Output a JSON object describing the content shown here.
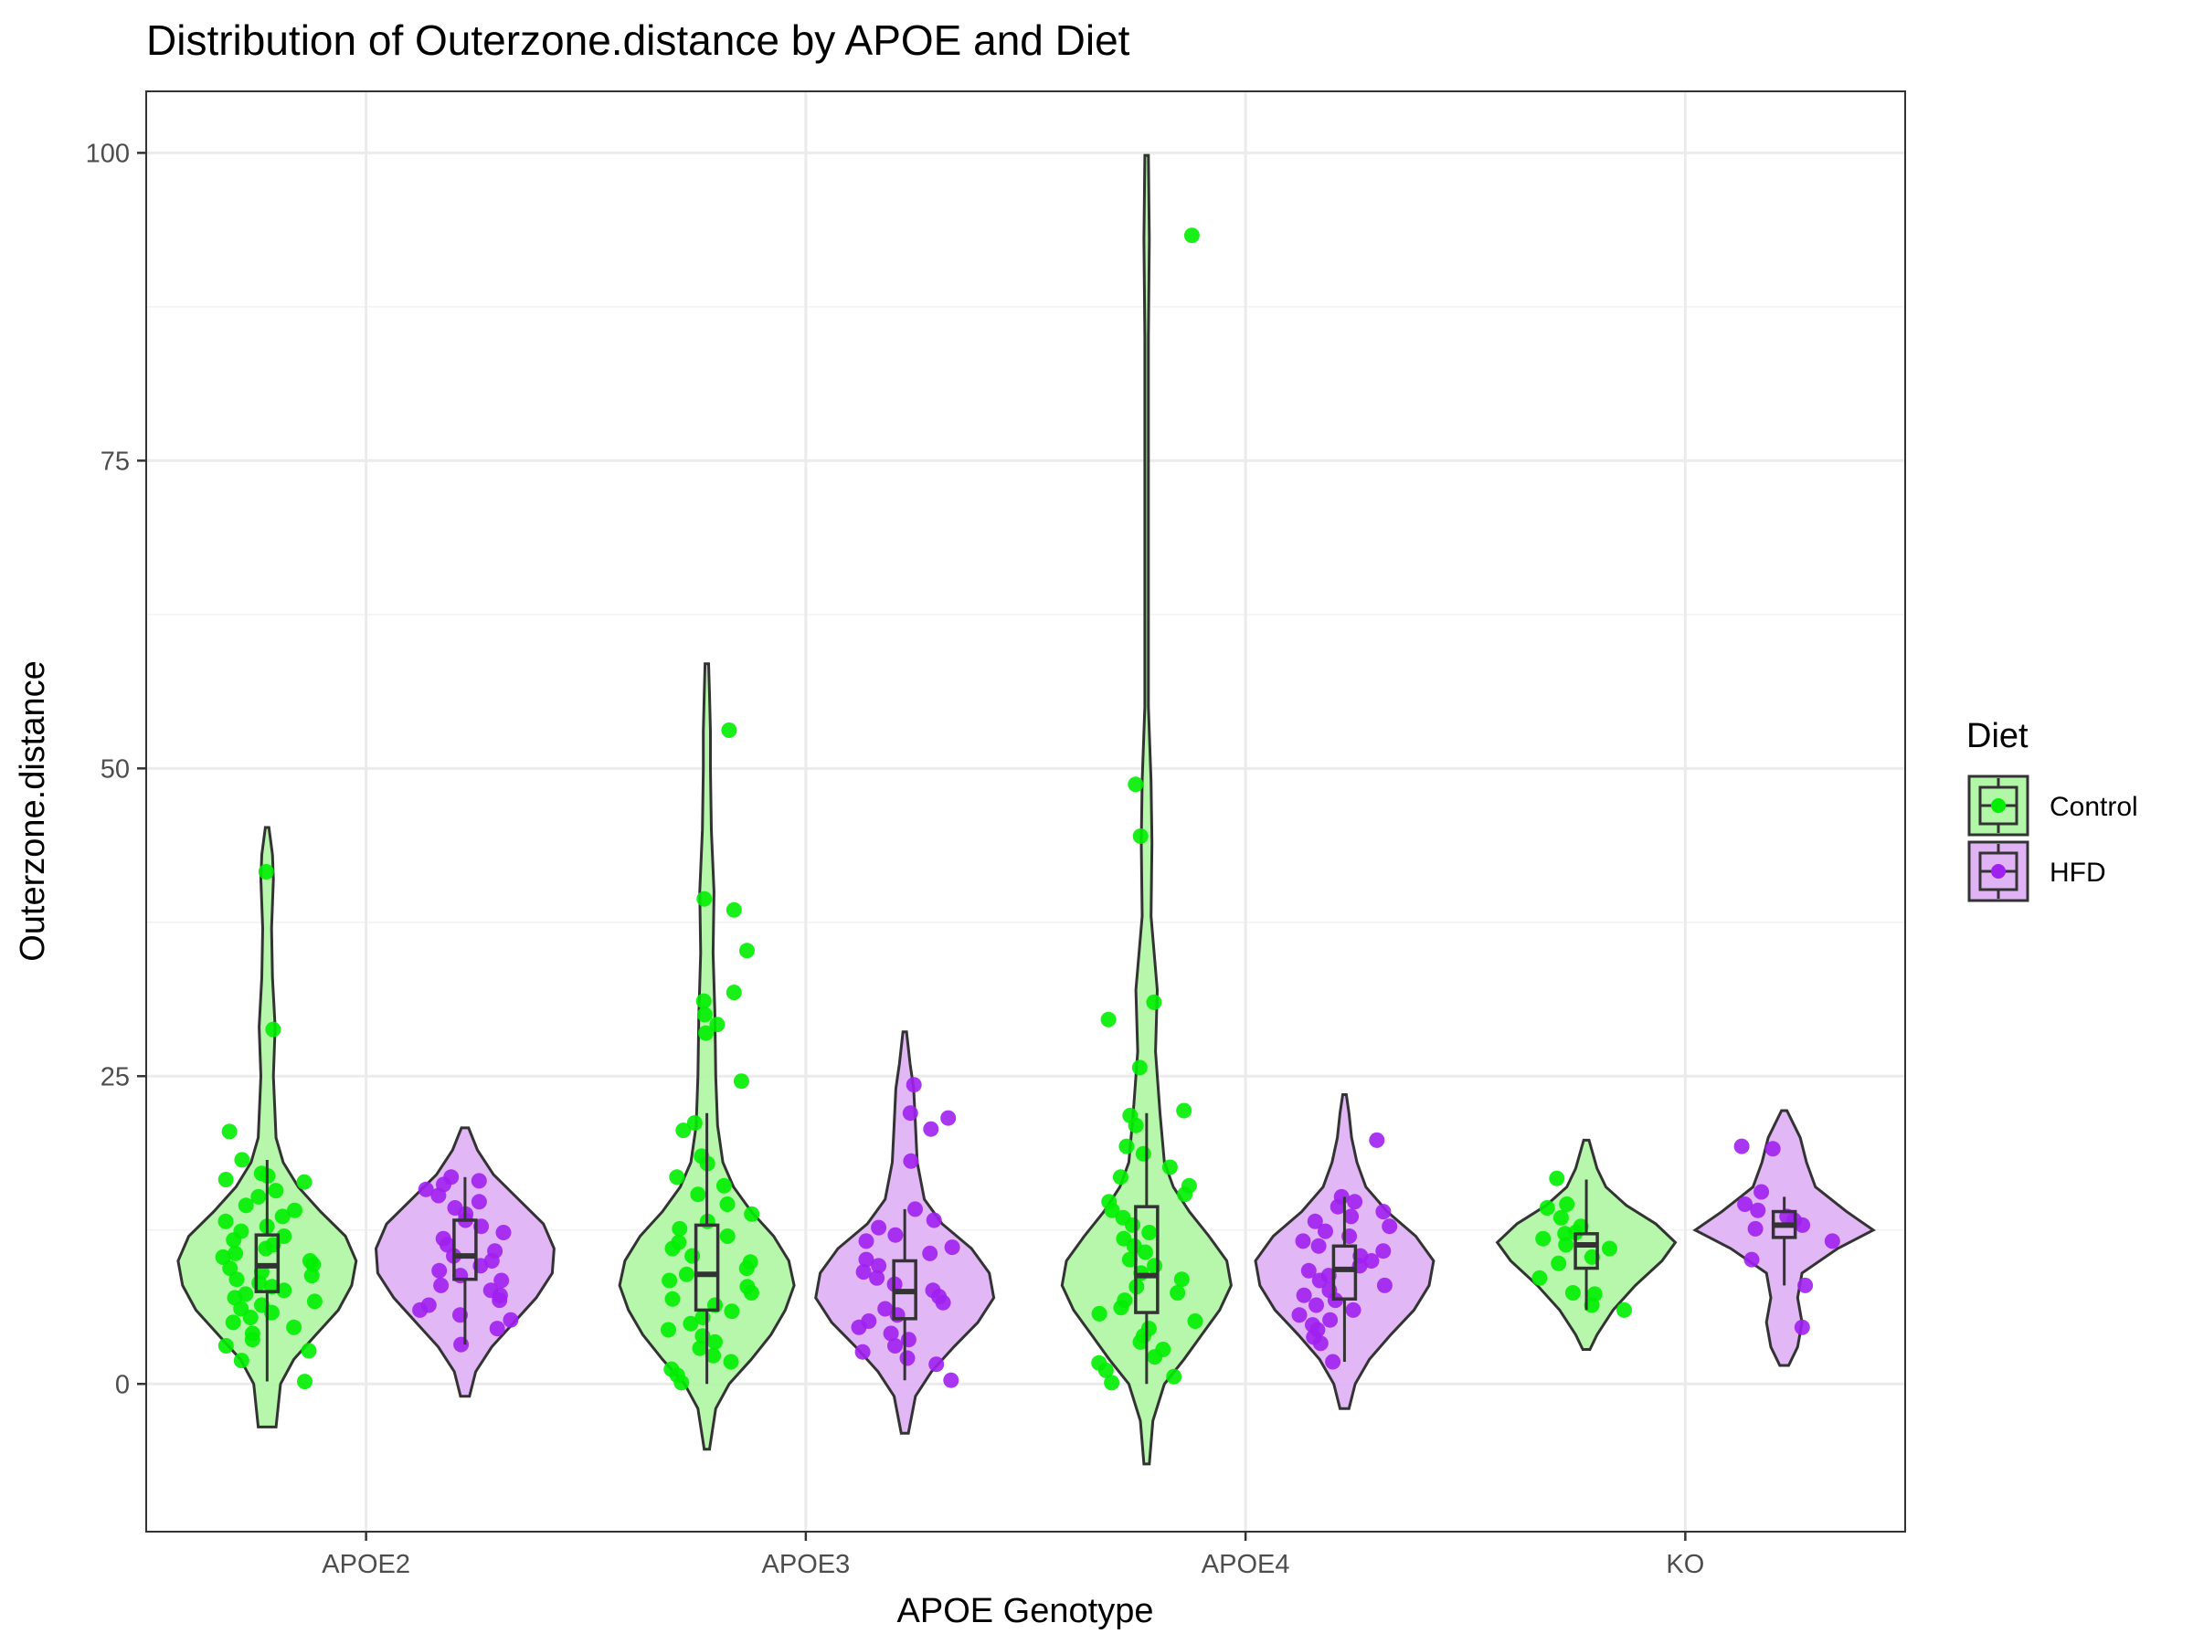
{
  "chart_data": {
    "type": "violin",
    "title": "Distribution of Outerzone.distance by APOE and Diet",
    "xlabel": "APOE Genotype",
    "ylabel": "Outerzone.distance",
    "categories": [
      "APOE2",
      "APOE3",
      "APOE4",
      "KO"
    ],
    "ylim": [
      -12,
      105
    ],
    "yticks": [
      0,
      25,
      50,
      75,
      100
    ],
    "grid": true,
    "legend": {
      "title": "Diet",
      "position": "right",
      "entries": [
        {
          "label": "Control",
          "color": "#00EE00",
          "fill": "#b2f7a8"
        },
        {
          "label": "HFD",
          "color": "#A020F0",
          "fill": "#e0b3f5"
        }
      ]
    },
    "series": [
      {
        "name": "Control",
        "groups": [
          {
            "category": "APOE2",
            "range": [
              -3.5,
              45.2
            ],
            "box": {
              "q1": 7.5,
              "median": 9.6,
              "q3": 12.1,
              "whisker_low": 0.2,
              "whisker_high": 18.2
            },
            "density": [
              [
                -3.5,
                0.1
              ],
              [
                0,
                0.15
              ],
              [
                2,
                0.3
              ],
              [
                4,
                0.55
              ],
              [
                6,
                0.8
              ],
              [
                8,
                0.95
              ],
              [
                10,
                1
              ],
              [
                12,
                0.88
              ],
              [
                14,
                0.6
              ],
              [
                16,
                0.35
              ],
              [
                18,
                0.18
              ],
              [
                20,
                0.1
              ],
              [
                25,
                0.07
              ],
              [
                29,
                0.09
              ],
              [
                33,
                0.06
              ],
              [
                37,
                0.05
              ],
              [
                41,
                0.07
              ],
              [
                43,
                0.06
              ],
              [
                45.2,
                0.02
              ]
            ],
            "points": [
              41.6,
              28.8,
              20.5,
              18.2,
              17.1,
              16.9,
              16.6,
              16.4,
              15.7,
              15.2,
              14.5,
              14.1,
              13.6,
              13.2,
              12.8,
              12.4,
              12.0,
              11.7,
              11.3,
              11.0,
              10.6,
              10.3,
              10.0,
              9.7,
              9.4,
              9.1,
              8.8,
              8.5,
              8.2,
              7.9,
              7.6,
              7.3,
              7.0,
              6.7,
              6.4,
              6.1,
              5.8,
              5.4,
              5.0,
              4.6,
              4.1,
              3.6,
              3.1,
              2.7,
              1.9,
              0.2
            ]
          },
          {
            "category": "APOE3",
            "range": [
              -5.3,
              58.5
            ],
            "box": {
              "q1": 6.0,
              "median": 8.9,
              "q3": 12.9,
              "whisker_low": 0.0,
              "whisker_high": 22.0
            },
            "density": [
              [
                -5.3,
                0.03
              ],
              [
                -2,
                0.1
              ],
              [
                0,
                0.25
              ],
              [
                2,
                0.5
              ],
              [
                4,
                0.72
              ],
              [
                6,
                0.88
              ],
              [
                8,
                0.98
              ],
              [
                10,
                0.92
              ],
              [
                12,
                0.75
              ],
              [
                14,
                0.5
              ],
              [
                16,
                0.3
              ],
              [
                18,
                0.18
              ],
              [
                21,
                0.12
              ],
              [
                25,
                0.1
              ],
              [
                30,
                0.09
              ],
              [
                35,
                0.07
              ],
              [
                40,
                0.08
              ],
              [
                45,
                0.05
              ],
              [
                50,
                0.04
              ],
              [
                53,
                0.04
              ],
              [
                56,
                0.03
              ],
              [
                58.5,
                0.02
              ]
            ],
            "points": [
              53.1,
              39.4,
              38.5,
              35.2,
              31.8,
              31.1,
              30.0,
              29.2,
              28.5,
              24.6,
              21.2,
              20.6,
              18.5,
              17.9,
              16.8,
              16.1,
              15.4,
              14.6,
              13.8,
              13.2,
              12.6,
              12.0,
              11.5,
              11.0,
              10.4,
              9.9,
              9.4,
              8.9,
              8.4,
              7.9,
              7.4,
              6.9,
              6.4,
              5.9,
              5.4,
              4.9,
              4.4,
              3.9,
              3.4,
              2.9,
              2.3,
              1.8,
              1.2,
              0.7,
              0.1
            ]
          },
          {
            "category": "APOE4",
            "range": [
              -6.5,
              99.8
            ],
            "box": {
              "q1": 5.8,
              "median": 8.8,
              "q3": 14.4,
              "whisker_low": 0.0,
              "whisker_high": 22.0
            },
            "density": [
              [
                -6.5,
                0.03
              ],
              [
                -3,
                0.07
              ],
              [
                0,
                0.2
              ],
              [
                2,
                0.42
              ],
              [
                4,
                0.62
              ],
              [
                6,
                0.82
              ],
              [
                8,
                0.95
              ],
              [
                10,
                0.9
              ],
              [
                12,
                0.7
              ],
              [
                14,
                0.48
              ],
              [
                16,
                0.3
              ],
              [
                18,
                0.2
              ],
              [
                22,
                0.15
              ],
              [
                27,
                0.1
              ],
              [
                32,
                0.12
              ],
              [
                38,
                0.05
              ],
              [
                44,
                0.06
              ],
              [
                49,
                0.05
              ],
              [
                55,
                0.02
              ],
              [
                70,
                0.02
              ],
              [
                85,
                0.02
              ],
              [
                93,
                0.03
              ],
              [
                99.8,
                0.02
              ]
            ],
            "points": [
              93.3,
              48.7,
              44.5,
              31.0,
              29.6,
              25.7,
              22.2,
              21.8,
              21.0,
              19.3,
              18.7,
              17.6,
              16.8,
              16.1,
              15.4,
              14.8,
              14.1,
              13.5,
              12.9,
              12.3,
              11.8,
              11.2,
              10.7,
              10.1,
              9.6,
              9.0,
              8.5,
              7.9,
              7.4,
              6.8,
              6.2,
              5.7,
              5.1,
              4.5,
              3.9,
              3.4,
              2.8,
              2.2,
              1.7,
              1.1,
              0.6,
              0.1
            ]
          },
          {
            "category": "KO",
            "range": [
              2.8,
              19.8
            ],
            "box": {
              "q1": 9.4,
              "median": 11.3,
              "q3": 12.2,
              "whisker_low": 6.0,
              "whisker_high": 16.6
            },
            "density": [
              [
                2.8,
                0.04
              ],
              [
                4,
                0.12
              ],
              [
                6,
                0.3
              ],
              [
                8,
                0.55
              ],
              [
                10,
                0.85
              ],
              [
                11.5,
                1
              ],
              [
                13,
                0.78
              ],
              [
                14.5,
                0.45
              ],
              [
                16,
                0.22
              ],
              [
                17.5,
                0.12
              ],
              [
                19.8,
                0.03
              ]
            ],
            "points": [
              16.7,
              14.6,
              14.3,
              13.5,
              12.8,
              12.3,
              12.2,
              11.8,
              11.3,
              11.0,
              10.3,
              9.8,
              8.6,
              7.4,
              7.3,
              6.4,
              6.0
            ]
          }
        ]
      },
      {
        "name": "HFD",
        "groups": [
          {
            "category": "APOE2",
            "range": [
              -1.0,
              20.8
            ],
            "box": {
              "q1": 8.5,
              "median": 10.4,
              "q3": 13.3,
              "whisker_low": 3.2,
              "whisker_high": 16.8
            },
            "density": [
              [
                -1,
                0.05
              ],
              [
                1,
                0.12
              ],
              [
                3,
                0.3
              ],
              [
                5,
                0.55
              ],
              [
                7,
                0.8
              ],
              [
                9,
                0.98
              ],
              [
                11,
                1
              ],
              [
                13,
                0.88
              ],
              [
                15,
                0.6
              ],
              [
                17,
                0.32
              ],
              [
                19,
                0.14
              ],
              [
                20.8,
                0.04
              ]
            ],
            "points": [
              16.8,
              16.5,
              16.2,
              15.8,
              15.3,
              14.8,
              14.3,
              13.8,
              13.3,
              12.8,
              12.3,
              11.8,
              11.3,
              10.8,
              10.4,
              10.0,
              9.6,
              9.2,
              8.8,
              8.4,
              8.0,
              7.6,
              7.2,
              6.8,
              6.4,
              6.0,
              5.6,
              5.2,
              4.5,
              3.2
            ]
          },
          {
            "category": "APOE3",
            "range": [
              -4.0,
              28.6
            ],
            "box": {
              "q1": 5.3,
              "median": 7.5,
              "q3": 10.0,
              "whisker_low": 0.3,
              "whisker_high": 14.2
            },
            "density": [
              [
                -4,
                0.04
              ],
              [
                -1,
                0.12
              ],
              [
                1,
                0.3
              ],
              [
                3,
                0.55
              ],
              [
                5,
                0.82
              ],
              [
                7,
                1
              ],
              [
                9,
                0.95
              ],
              [
                11,
                0.75
              ],
              [
                13,
                0.42
              ],
              [
                15,
                0.22
              ],
              [
                18,
                0.14
              ],
              [
                21,
                0.12
              ],
              [
                24,
                0.1
              ],
              [
                26,
                0.06
              ],
              [
                28.6,
                0.02
              ]
            ],
            "points": [
              24.3,
              22.0,
              21.6,
              20.7,
              18.1,
              14.2,
              13.3,
              12.7,
              12.1,
              11.6,
              11.1,
              10.6,
              10.1,
              9.6,
              9.1,
              8.6,
              8.1,
              7.6,
              7.1,
              6.6,
              6.1,
              5.6,
              5.1,
              4.6,
              4.1,
              3.6,
              3.1,
              2.6,
              2.1,
              1.6,
              0.3
            ]
          },
          {
            "category": "APOE4",
            "range": [
              -2.0,
              23.5
            ],
            "box": {
              "q1": 6.9,
              "median": 9.3,
              "q3": 11.2,
              "whisker_low": 1.8,
              "whisker_high": 15.2
            },
            "density": [
              [
                -2,
                0.05
              ],
              [
                0,
                0.12
              ],
              [
                2,
                0.28
              ],
              [
                4,
                0.52
              ],
              [
                6,
                0.78
              ],
              [
                8,
                0.95
              ],
              [
                10,
                1
              ],
              [
                12,
                0.8
              ],
              [
                14,
                0.48
              ],
              [
                16,
                0.24
              ],
              [
                18,
                0.14
              ],
              [
                20,
                0.08
              ],
              [
                22,
                0.05
              ],
              [
                23.5,
                0.02
              ]
            ],
            "points": [
              19.8,
              15.2,
              14.8,
              14.4,
              14.0,
              13.6,
              13.2,
              12.8,
              12.4,
              12.0,
              11.6,
              11.2,
              10.8,
              10.4,
              10.0,
              9.6,
              9.2,
              8.8,
              8.4,
              8.0,
              7.6,
              7.2,
              6.8,
              6.4,
              6.0,
              5.6,
              5.2,
              4.8,
              4.4,
              3.8,
              3.3,
              1.8
            ]
          },
          {
            "category": "KO",
            "range": [
              1.5,
              22.2
            ],
            "box": {
              "q1": 11.9,
              "median": 12.9,
              "q3": 14.0,
              "whisker_low": 8.0,
              "whisker_high": 15.2
            },
            "density": [
              [
                1.5,
                0.05
              ],
              [
                3,
                0.15
              ],
              [
                5,
                0.2
              ],
              [
                7,
                0.15
              ],
              [
                9,
                0.2
              ],
              [
                11,
                0.6
              ],
              [
                12.5,
                1
              ],
              [
                14,
                0.7
              ],
              [
                16,
                0.35
              ],
              [
                18,
                0.25
              ],
              [
                20,
                0.18
              ],
              [
                22.2,
                0.03
              ]
            ],
            "points": [
              19.3,
              19.1,
              15.6,
              14.6,
              14.1,
              13.6,
              13.3,
              12.9,
              12.6,
              11.6,
              10.1,
              8.0,
              4.6
            ]
          }
        ]
      }
    ]
  }
}
